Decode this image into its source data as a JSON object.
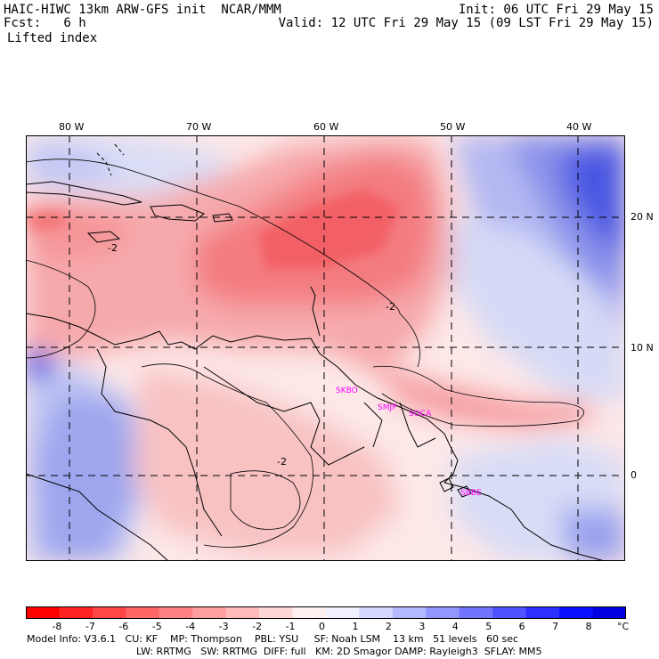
{
  "header": {
    "left_line1": "HAIC-HIWC 13km ARW-GFS init  NCAR/MMM",
    "left_line2": "Fcst:   6 h",
    "right_line1": "Init: 06 UTC Fri 29 May 15",
    "right_line2": "Valid: 12 UTC Fri 29 May 15 (09 LST Fri 29 May 15)",
    "field_label": "Lifted index"
  },
  "map": {
    "lon_labels": [
      "80 W",
      "70 W",
      "60 W",
      "50 W",
      "40 W"
    ],
    "lat_labels": [
      "20 N",
      "10 N",
      "0"
    ],
    "station_labels": [
      "SKBO",
      "SMJP",
      "SOCA",
      "SBBE"
    ],
    "contour_labels": [
      "-2",
      "-2",
      "-2"
    ],
    "colors": {
      "unstable_strong": "#f2555a",
      "unstable": "#f48a8e",
      "unstable_light": "#f8c0c2",
      "neutral": "#fde6e6",
      "stable_light": "#d8dcf6",
      "stable": "#a0a8ee",
      "stable_strong": "#5a66e6",
      "stable_max": "#1f2bd9"
    }
  },
  "colorbar": {
    "ticks": [
      "-8",
      "-7",
      "-6",
      "-5",
      "-4",
      "-3",
      "-2",
      "-1",
      "0",
      "1",
      "2",
      "3",
      "4",
      "5",
      "6",
      "7",
      "8"
    ],
    "unit": "°C",
    "colors": [
      "#ff0000",
      "#ff2222",
      "#ff4646",
      "#ff6666",
      "#ff8282",
      "#ff9e9e",
      "#ffbaba",
      "#ffd6d6",
      "#fff0f0",
      "#f0f0ff",
      "#d6d8ff",
      "#b4b8ff",
      "#9296ff",
      "#7074ff",
      "#4e52ff",
      "#2c30ff",
      "#0a10ff",
      "#0000e0"
    ]
  },
  "footer": {
    "line1": "Model Info: V3.6.1   CU: KF    MP: Thompson    PBL: YSU     SF: Noah LSM    13 km   51 levels   60 sec",
    "line2": "LW: RRTMG   SW: RRTMG  DIFF: full   KM: 2D Smagor DAMP: Rayleigh3  SFLAY: MM5"
  }
}
